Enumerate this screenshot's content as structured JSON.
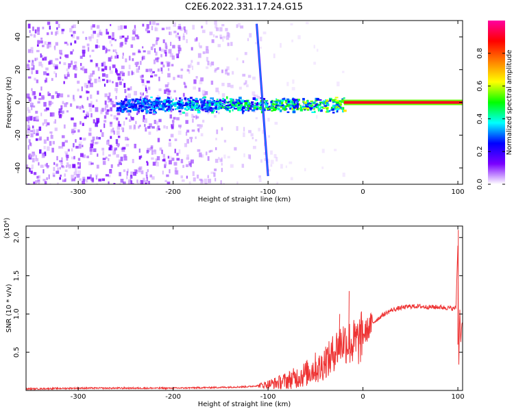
{
  "title": "C2E6.2022.331.17.24.G15",
  "chart_data": [
    {
      "type": "heatmap",
      "xlabel": "Height of straight line (km)",
      "ylabel": "Frequency (Hz)",
      "xlim": [
        -355,
        105
      ],
      "ylim": [
        -50,
        50
      ],
      "x_ticks": [
        -300,
        -200,
        -100,
        0,
        100
      ],
      "x_tick_labels": [
        "-300",
        "-200",
        "-100",
        "0",
        "100"
      ],
      "y_ticks": [
        -40,
        -20,
        0,
        20,
        40
      ],
      "y_tick_labels": [
        "-40",
        "-20",
        "0",
        "20",
        "40"
      ],
      "colorbar": {
        "label": "Normalized spectral amplitude",
        "range": [
          0.0,
          1.0
        ],
        "ticks": [
          0.0,
          0.2,
          0.4,
          0.6,
          0.8
        ],
        "tick_labels": [
          "0.0",
          "0.2",
          "0.4",
          "0.6",
          "0.8"
        ],
        "colormap": [
          "#ffffff",
          "#7a00ff",
          "#0000ff",
          "#00ffff",
          "#00ff00",
          "#ffff00",
          "#ff8000",
          "#ff0000",
          "#ff00a0"
        ]
      },
      "features": [
        {
          "name": "carrier",
          "x_start": -20,
          "x_end": 105,
          "frequency": 0,
          "amplitude": 1.0
        },
        {
          "name": "scintillation_band",
          "x_start": -260,
          "x_end": -20,
          "frequency_center": -1,
          "frequency_halfwidth": 5,
          "amplitude_range": [
            0.2,
            0.6
          ]
        },
        {
          "name": "diagonal_trace",
          "x_start": -112,
          "x_end": -100,
          "frequency_start": 48,
          "frequency_end": -45
        }
      ],
      "grid": true
    },
    {
      "type": "line",
      "xlabel": "Height of straight line (km)",
      "ylabel": "SNR (10 * v/v)",
      "y_multiplier": "(x10⁴)",
      "xlim": [
        -355,
        105
      ],
      "ylim": [
        0,
        2.15
      ],
      "x_ticks": [
        -300,
        -200,
        -100,
        0,
        100
      ],
      "x_tick_labels": [
        "-300",
        "-200",
        "-100",
        "0",
        "100"
      ],
      "y_ticks": [
        0.5,
        1.0,
        1.5,
        2.0
      ],
      "y_tick_labels": [
        "0.5",
        "1.0",
        "1.5",
        "2.0"
      ],
      "color": "#ee3333",
      "grid": true,
      "series": [
        {
          "x": [
            -355,
            -300,
            -250,
            -200,
            -150,
            -120,
            -100,
            -90,
            -80,
            -70,
            -60,
            -50,
            -45,
            -40,
            -35,
            -30,
            -25,
            -20,
            -15,
            -10,
            -5,
            0,
            10,
            20,
            30,
            40,
            50,
            60,
            70,
            80,
            90,
            95,
            98,
            100,
            101,
            102,
            103,
            104,
            105
          ],
          "y": [
            0.02,
            0.03,
            0.03,
            0.03,
            0.04,
            0.05,
            0.08,
            0.1,
            0.13,
            0.17,
            0.22,
            0.3,
            0.28,
            0.4,
            0.4,
            0.52,
            0.6,
            0.65,
            0.62,
            0.62,
            0.64,
            0.72,
            0.88,
            0.98,
            1.05,
            1.08,
            1.1,
            1.1,
            1.09,
            1.09,
            1.08,
            1.07,
            1.08,
            1.9,
            0.3,
            1.1,
            0.6,
            0.85,
            0.9
          ]
        }
      ],
      "spikes": [
        {
          "x": -15,
          "y": 1.3
        },
        {
          "x": -25,
          "y": 1.0
        },
        {
          "x": 100,
          "y": 2.1
        }
      ]
    }
  ]
}
